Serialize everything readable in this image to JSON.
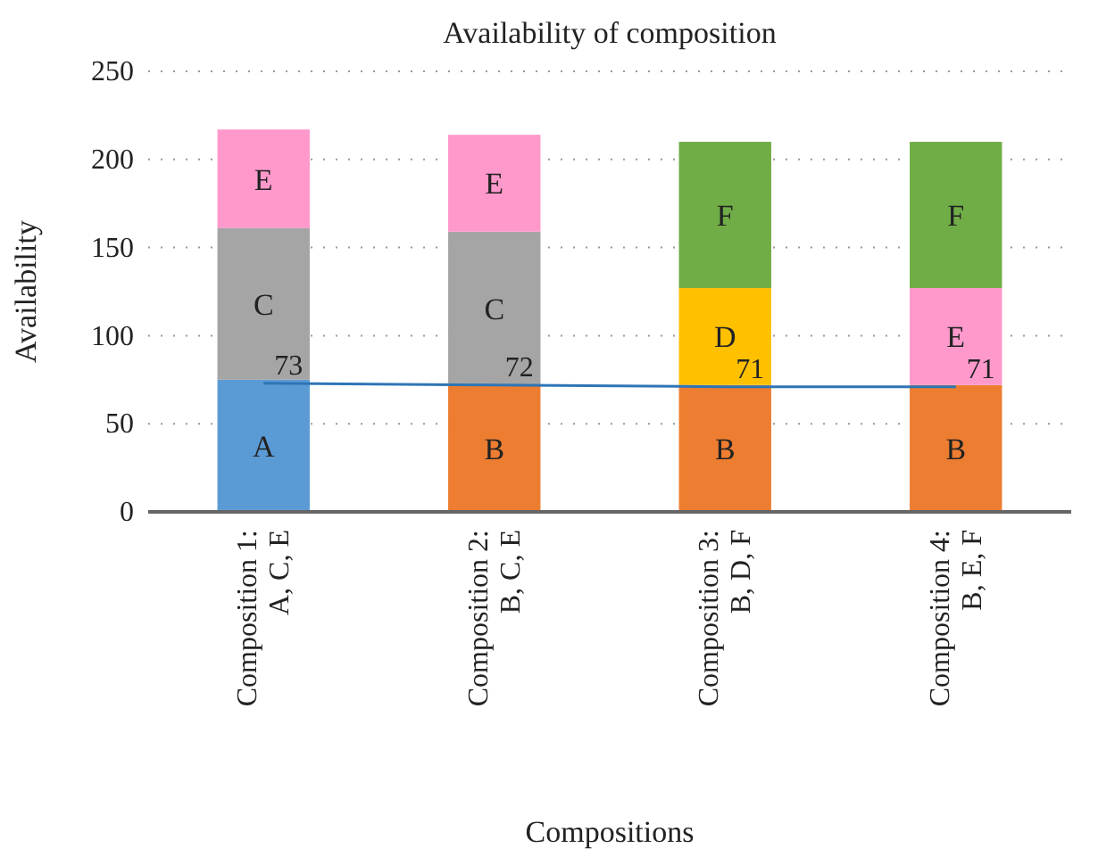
{
  "chart_data": {
    "type": "bar",
    "stacked": true,
    "title": "Availability of composition",
    "xlabel": "Compositions",
    "ylabel": "Availability",
    "categories": [
      "Composition 1: A, C, E",
      "Composition 2: B, C, E",
      "Composition 3: B, D, F",
      "Composition 4: B, E, F"
    ],
    "series": [
      {
        "colors": [
          "#5b9bd5",
          "#ed7d31",
          "#ed7d31",
          "#ed7d31"
        ],
        "values": [
          75,
          72,
          72,
          72
        ],
        "value_labels": [
          "A",
          "B",
          "B",
          "B"
        ]
      },
      {
        "colors": [
          "#a5a5a5",
          "#a5a5a5",
          "#ffc000",
          "#ff99cc"
        ],
        "values": [
          86,
          87,
          55,
          55
        ],
        "value_labels": [
          "C",
          "C",
          "D",
          "E"
        ]
      },
      {
        "colors": [
          "#ff99cc",
          "#ff99cc",
          "#70ad47",
          "#70ad47"
        ],
        "values": [
          56,
          55,
          83,
          83
        ],
        "value_labels": [
          "E",
          "E",
          "F",
          "F"
        ]
      },
      {
        "type": "line",
        "color": "#2e75b6",
        "values": [
          73,
          72,
          71,
          71
        ],
        "value_labels": [
          "73",
          "72",
          "71",
          "71"
        ]
      }
    ],
    "ylim": [
      0,
      250
    ],
    "yticks": [
      0,
      50,
      100,
      150,
      200,
      250
    ],
    "grid": "y"
  }
}
